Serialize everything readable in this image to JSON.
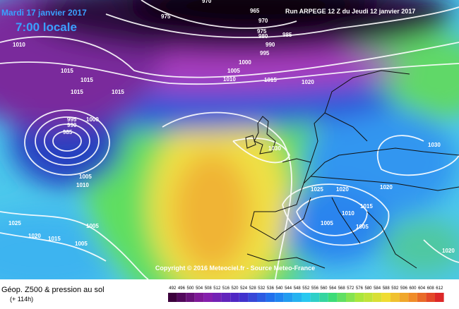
{
  "header": {
    "date": "Mardi 17 janvier 2017",
    "time": "7:00 locale",
    "run": "Run ARPEGE 12 Z du Jeudi 12 janvier 2017"
  },
  "copyright": "Copyright © 2016 Meteociel.fr - Source Meteo-France",
  "isobar_labels": [
    975,
    970,
    965,
    970,
    975,
    985,
    980,
    990,
    995,
    1000,
    1005,
    1010,
    1015,
    1020,
    1010,
    1015,
    1015,
    1015,
    1015,
    995,
    990,
    985,
    1000,
    1005,
    1010,
    1030,
    1030,
    1025,
    1020,
    1020,
    1015,
    1010,
    1005,
    1005,
    1025,
    1005,
    1020,
    1015,
    1005,
    1020
  ],
  "footer": {
    "title": "Géop. Z500 & pression au sol",
    "lead": "(+ 114h)"
  },
  "scale": {
    "values": [
      492,
      496,
      500,
      504,
      508,
      512,
      516,
      520,
      524,
      528,
      532,
      536,
      540,
      544,
      548,
      552,
      556,
      560,
      564,
      568,
      572,
      576,
      580,
      584,
      588,
      592,
      596,
      600,
      604,
      608,
      612
    ]
  }
}
